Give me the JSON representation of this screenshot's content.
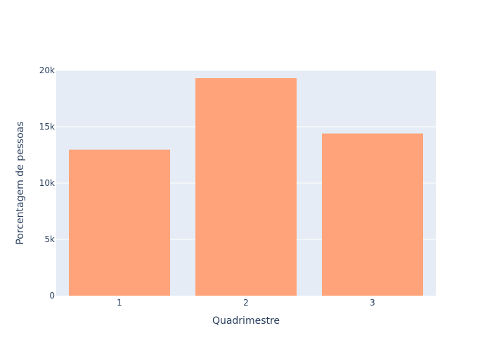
{
  "chart_data": {
    "type": "bar",
    "categories": [
      "1",
      "2",
      "3"
    ],
    "values": [
      12960,
      19310,
      14400
    ],
    "title": "",
    "xlabel": "Quadrimestre",
    "ylabel": "Porcentagem de pessoas",
    "ylim": [
      0,
      20000
    ],
    "yticks": [
      0,
      5000,
      10000,
      15000,
      20000
    ],
    "ytick_labels": [
      "0",
      "5k",
      "10k",
      "15k",
      "20k"
    ],
    "grid": true,
    "legend": "none",
    "colors": {
      "bar": "#FFA47A",
      "plot_background": "#E5ECF6",
      "grid": "#FFFFFF",
      "text": "#2A3F5F"
    }
  }
}
